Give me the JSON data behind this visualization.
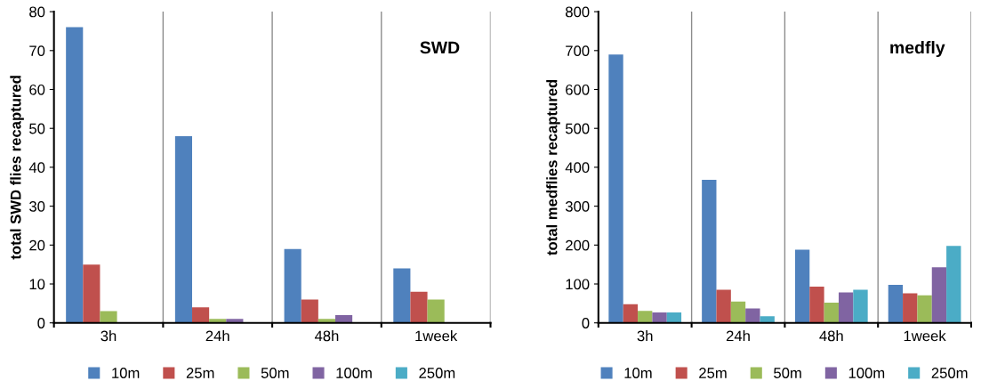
{
  "chart_data": [
    {
      "type": "bar",
      "title": "SWD",
      "ylabel": "total SWD flies recaptured",
      "categories": [
        "3h",
        "24h",
        "48h",
        "1week"
      ],
      "ylim": [
        0,
        80
      ],
      "yticks": [
        0,
        10,
        20,
        30,
        40,
        50,
        60,
        70,
        80
      ],
      "grid": "x",
      "legend": "bottom",
      "series": [
        {
          "name": "10m",
          "color": "#4f81bd",
          "values": [
            76,
            48,
            19,
            14
          ]
        },
        {
          "name": "25m",
          "color": "#c0504d",
          "values": [
            15,
            4,
            6,
            8
          ]
        },
        {
          "name": "50m",
          "color": "#9bbb59",
          "values": [
            3,
            1,
            1,
            6
          ]
        },
        {
          "name": "100m",
          "color": "#8064a2",
          "values": [
            0,
            1,
            2,
            0
          ]
        },
        {
          "name": "250m",
          "color": "#4bacc6",
          "values": [
            0,
            0,
            0,
            0
          ]
        }
      ]
    },
    {
      "type": "bar",
      "title": "medfly",
      "ylabel": "total medflies recaptured",
      "categories": [
        "3h",
        "24h",
        "48h",
        "1week"
      ],
      "ylim": [
        0,
        800
      ],
      "yticks": [
        0,
        100,
        200,
        300,
        400,
        500,
        600,
        700,
        800
      ],
      "grid": "x",
      "legend": "bottom",
      "series": [
        {
          "name": "10m",
          "color": "#4f81bd",
          "values": [
            690,
            368,
            188,
            98
          ]
        },
        {
          "name": "25m",
          "color": "#c0504d",
          "values": [
            48,
            85,
            93,
            76
          ]
        },
        {
          "name": "50m",
          "color": "#9bbb59",
          "values": [
            31,
            55,
            52,
            71
          ]
        },
        {
          "name": "100m",
          "color": "#8064a2",
          "values": [
            27,
            37,
            78,
            143
          ]
        },
        {
          "name": "250m",
          "color": "#4bacc6",
          "values": [
            27,
            17,
            85,
            198
          ]
        }
      ]
    }
  ]
}
